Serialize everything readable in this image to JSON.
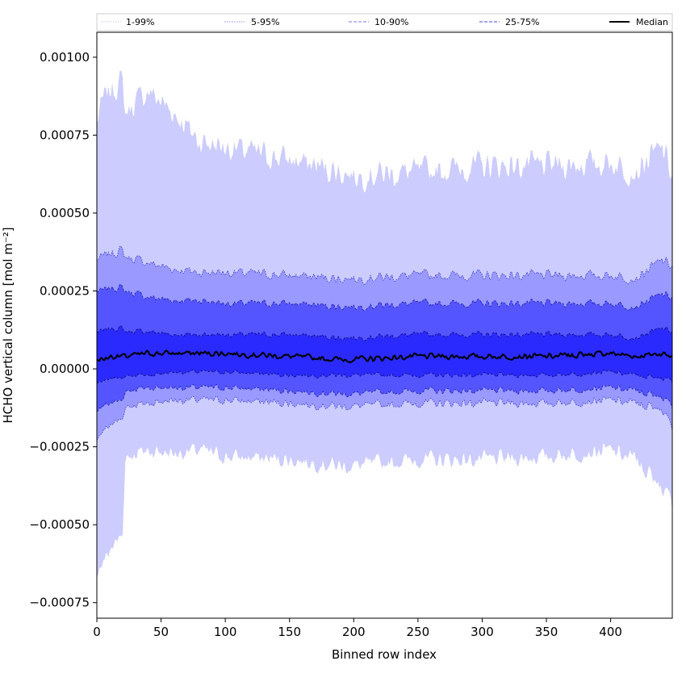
{
  "chart_data": {
    "type": "area",
    "title": "",
    "xlabel": "Binned row index",
    "ylabel": "HCHO vertical column [mol m⁻²]",
    "xlim": [
      0,
      448
    ],
    "ylim": [
      -0.0008,
      0.00108
    ],
    "x_ticks": [
      0,
      50,
      100,
      150,
      200,
      250,
      300,
      350,
      400
    ],
    "y_ticks": [
      0.001,
      0.00075,
      0.0005,
      0.00025,
      0.0,
      -0.00025,
      -0.0005,
      -0.00075
    ],
    "x_tick_labels": [
      "0",
      "50",
      "100",
      "150",
      "200",
      "250",
      "300",
      "350",
      "400"
    ],
    "y_tick_labels": [
      "0.00100",
      "0.00075",
      "0.00050",
      "0.00025",
      "0.00000",
      "−0.00025",
      "−0.00050",
      "−0.00075"
    ],
    "grid": false,
    "legend_position": "top",
    "x_control": [
      0,
      5,
      10,
      20,
      22,
      40,
      60,
      80,
      100,
      150,
      190,
      200,
      250,
      300,
      350,
      400,
      420,
      440,
      448
    ],
    "bands": [
      {
        "name": "1-99%",
        "color": "#ccccff",
        "line_color": "#c8c8f0",
        "lower": [
          -0.00065,
          -0.00062,
          -0.00058,
          -0.00053,
          -0.00028,
          -0.00026,
          -0.00027,
          -0.00026,
          -0.00028,
          -0.00029,
          -0.00031,
          -0.00031,
          -0.00029,
          -0.00029,
          -0.00028,
          -0.00026,
          -0.00029,
          -0.00038,
          -0.00043
        ],
        "upper": [
          0.00079,
          0.00086,
          0.00089,
          0.00092,
          0.00082,
          0.00089,
          0.00082,
          0.00073,
          0.00071,
          0.00067,
          0.00063,
          0.00062,
          0.00063,
          0.00065,
          0.00065,
          0.00066,
          0.00063,
          0.00071,
          0.00062
        ]
      },
      {
        "name": "5-95%",
        "color": "#9999ff",
        "line_color": "#2222bb",
        "lower": [
          -0.00022,
          -0.0002,
          -0.00018,
          -0.00016,
          -0.00012,
          -0.00011,
          -0.0001,
          -0.0001,
          -0.0001,
          -0.00011,
          -0.00012,
          -0.00012,
          -0.00011,
          -0.00011,
          -0.00011,
          -0.0001,
          -0.00011,
          -0.00013,
          -0.00019
        ],
        "upper": [
          0.00035,
          0.00036,
          0.00037,
          0.00038,
          0.00036,
          0.00034,
          0.00032,
          0.00031,
          0.00031,
          0.0003,
          0.00029,
          0.00029,
          0.0003,
          0.0003,
          0.0003,
          0.0003,
          0.00029,
          0.00035,
          0.00033
        ]
      },
      {
        "name": "10-90%",
        "color": "#5555ff",
        "line_color": "#111199",
        "lower": [
          -0.00013,
          -0.00012,
          -0.00011,
          -0.0001,
          -7e-05,
          -6e-05,
          -6e-05,
          -6e-05,
          -6e-05,
          -7e-05,
          -8e-05,
          -8e-05,
          -7e-05,
          -7e-05,
          -7e-05,
          -6e-05,
          -7e-05,
          -9e-05,
          -0.00012
        ],
        "upper": [
          0.00025,
          0.00025,
          0.00026,
          0.00026,
          0.00025,
          0.00023,
          0.00022,
          0.00022,
          0.00021,
          0.00021,
          0.0002,
          0.0002,
          0.00021,
          0.00021,
          0.00021,
          0.00021,
          0.0002,
          0.00024,
          0.00023
        ]
      },
      {
        "name": "25-75%",
        "color": "#2a2aff",
        "line_color": "#000066",
        "lower": [
          -4e-05,
          -4e-05,
          -3e-05,
          -3e-05,
          -2e-05,
          -2e-05,
          -1e-05,
          -1e-05,
          -1e-05,
          -2e-05,
          -2e-05,
          -2e-05,
          -2e-05,
          -2e-05,
          -2e-05,
          -1e-05,
          -2e-05,
          -3e-05,
          -4e-05
        ],
        "upper": [
          0.00012,
          0.00012,
          0.00013,
          0.00013,
          0.00012,
          0.00012,
          0.00011,
          0.00011,
          0.00011,
          0.00011,
          0.0001,
          0.0001,
          0.00011,
          0.00011,
          0.00011,
          0.00011,
          0.0001,
          0.00013,
          0.00012
        ]
      }
    ],
    "median": {
      "name": "Median",
      "color": "#000000",
      "values": [
        3e-05,
        3e-05,
        4e-05,
        4e-05,
        4e-05,
        5e-05,
        5e-05,
        5e-05,
        5e-05,
        4e-05,
        3e-05,
        3e-05,
        4e-05,
        4e-05,
        4e-05,
        5e-05,
        4e-05,
        5e-05,
        4e-05
      ]
    },
    "legend": [
      {
        "label": "1-99%",
        "style": "dotted",
        "color": "#c8c8f0"
      },
      {
        "label": "5-95%",
        "style": "dotted",
        "color": "#8888dd"
      },
      {
        "label": "10-90%",
        "style": "dashed",
        "color": "#7777ee"
      },
      {
        "label": "25-75%",
        "style": "dashed",
        "color": "#4444dd"
      },
      {
        "label": "Median",
        "style": "solid",
        "color": "#000000"
      }
    ]
  }
}
